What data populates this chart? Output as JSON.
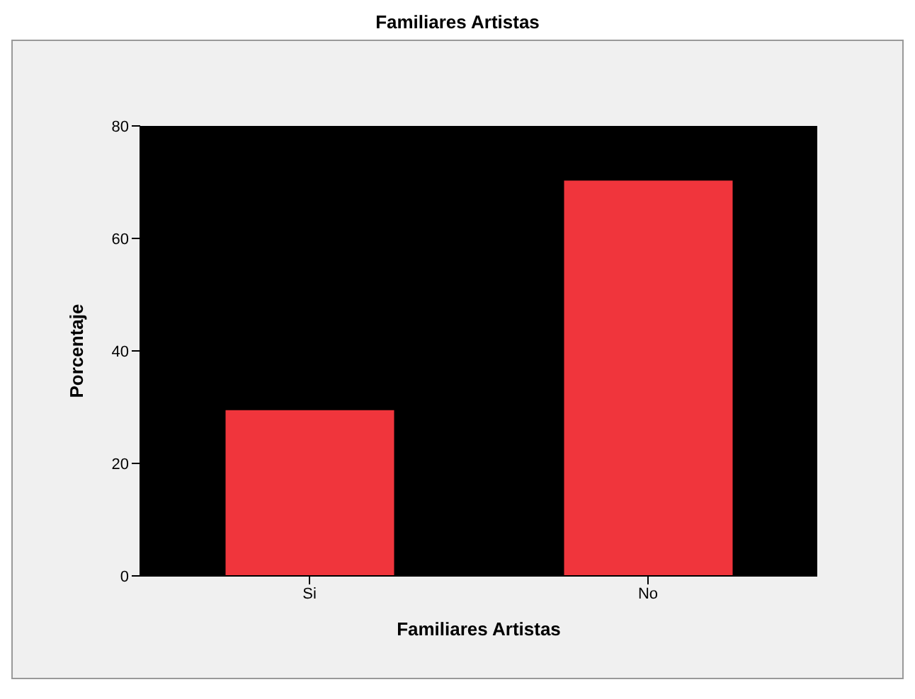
{
  "chart_data": {
    "type": "bar",
    "title": "Familiares Artistas",
    "xlabel": "Familiares Artistas",
    "ylabel": "Porcentaje",
    "categories": [
      "Si",
      "No"
    ],
    "values": [
      29.6,
      70.4
    ],
    "color": "#f0353c",
    "ylim": [
      0,
      80
    ],
    "yticks": [
      0,
      20,
      40,
      60,
      80
    ],
    "grid": false
  }
}
